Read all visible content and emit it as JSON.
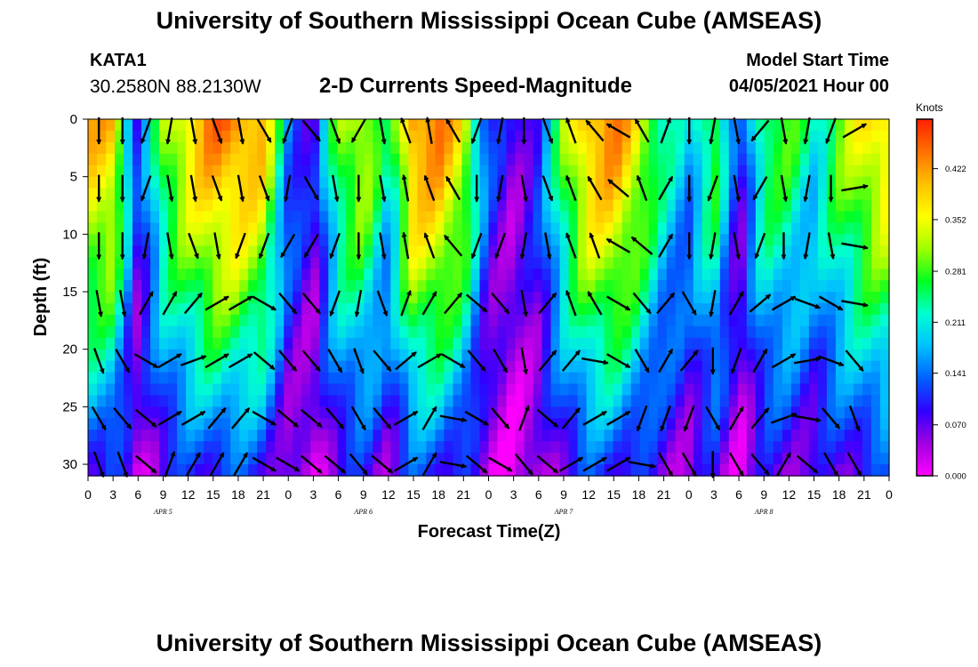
{
  "header": {
    "title": "University of Southern Mississippi Ocean Cube (AMSEAS)",
    "station": "KATA1",
    "coords": "30.2580N  88.2130W",
    "plot_title": "2-D Currents Speed-Magnitude",
    "start_label": "Model Start Time",
    "start_value": "04/05/2021 Hour 00"
  },
  "footer": {
    "title": "University of Southern Mississippi Ocean Cube (AMSEAS)"
  },
  "colors": {
    "colormap": [
      "#ff00ff",
      "#a000e0",
      "#3000ff",
      "#0060ff",
      "#00c0ff",
      "#00ffd0",
      "#00ff20",
      "#a0ff00",
      "#ffff00",
      "#ffc000",
      "#ff7000",
      "#ff2000"
    ]
  },
  "chart_data": {
    "type": "heatmap",
    "title": "2-D Currents Speed-Magnitude",
    "xlabel": "Forecast Time(Z)",
    "ylabel": "Depth (ft)",
    "x_hours_range": [
      0,
      96
    ],
    "y_range": [
      0,
      31
    ],
    "y_inverted": true,
    "x_tick_labels": [
      "0",
      "3",
      "6",
      "9",
      "12",
      "15",
      "18",
      "21",
      "0",
      "3",
      "6",
      "9",
      "12",
      "15",
      "18",
      "21",
      "0",
      "3",
      "6",
      "9",
      "12",
      "15",
      "18",
      "21",
      "0",
      "3",
      "6",
      "9",
      "12",
      "15",
      "18",
      "21",
      "0"
    ],
    "y_tick_values": [
      0,
      5,
      10,
      15,
      20,
      25,
      30
    ],
    "y_tick_labels": [
      "0",
      "5",
      "10",
      "15",
      "20",
      "25",
      "30"
    ],
    "date_labels": [
      {
        "hour": 9,
        "label": "APR 5"
      },
      {
        "hour": 33,
        "label": "APR 6"
      },
      {
        "hour": 57,
        "label": "APR 7"
      },
      {
        "hour": 81,
        "label": "APR 8"
      }
    ],
    "colorbar": {
      "unit": "Knots",
      "min": 0.0,
      "max": 0.49,
      "tick_values": [
        0.0,
        0.07,
        0.141,
        0.211,
        0.281,
        0.352,
        0.422
      ],
      "tick_labels": [
        "0.000",
        "0.070",
        "0.141",
        "0.211",
        "0.281",
        "0.352",
        "0.422"
      ]
    },
    "speed_profile_knots": [
      0.4,
      0.4,
      0.1,
      0.3,
      0.38,
      0.44,
      0.44,
      0.4,
      0.16,
      0.08,
      0.3,
      0.35,
      0.22,
      0.44,
      0.44,
      0.36,
      0.12,
      0.06,
      0.12,
      0.3,
      0.42,
      0.44,
      0.36,
      0.24,
      0.18,
      0.3,
      0.08,
      0.28,
      0.28,
      0.22,
      0.3,
      0.36,
      0.4
    ],
    "vector_rows_ft": [
      1,
      6,
      11,
      16,
      21,
      26,
      30
    ],
    "vector_directions_deg": [
      [
        180,
        180,
        200,
        190,
        170,
        160,
        170,
        150,
        200,
        140,
        160,
        210,
        170,
        340,
        350,
        330,
        200,
        190,
        180,
        160,
        340,
        320,
        300,
        330,
        20,
        180,
        190,
        170,
        220,
        170,
        190,
        200,
        60
      ],
      [
        180,
        180,
        200,
        170,
        170,
        160,
        170,
        160,
        190,
        150,
        170,
        180,
        170,
        350,
        340,
        330,
        180,
        190,
        170,
        160,
        340,
        330,
        310,
        340,
        30,
        180,
        200,
        170,
        210,
        170,
        190,
        180,
        80
      ],
      [
        180,
        180,
        190,
        170,
        160,
        170,
        200,
        200,
        210,
        210,
        200,
        180,
        170,
        350,
        340,
        320,
        200,
        200,
        190,
        170,
        340,
        340,
        300,
        310,
        30,
        180,
        190,
        170,
        200,
        180,
        190,
        170,
        100
      ],
      [
        170,
        170,
        30,
        30,
        40,
        60,
        60,
        120,
        140,
        140,
        200,
        190,
        160,
        20,
        30,
        40,
        130,
        140,
        170,
        40,
        340,
        330,
        120,
        140,
        40,
        150,
        190,
        30,
        50,
        60,
        110,
        120,
        100
      ],
      [
        160,
        150,
        120,
        60,
        70,
        60,
        60,
        130,
        140,
        140,
        150,
        160,
        140,
        50,
        60,
        120,
        140,
        150,
        170,
        40,
        40,
        100,
        120,
        150,
        30,
        40,
        180,
        200,
        30,
        60,
        80,
        110,
        140
      ],
      [
        150,
        140,
        130,
        60,
        60,
        40,
        40,
        120,
        130,
        130,
        140,
        150,
        140,
        60,
        30,
        100,
        120,
        140,
        20,
        130,
        40,
        60,
        60,
        200,
        200,
        200,
        150,
        30,
        40,
        70,
        100,
        140,
        160
      ],
      [
        160,
        160,
        130,
        20,
        30,
        30,
        30,
        120,
        120,
        130,
        130,
        140,
        130,
        60,
        30,
        100,
        130,
        120,
        140,
        130,
        60,
        60,
        60,
        100,
        150,
        150,
        180,
        150,
        140,
        30,
        130,
        150,
        150
      ]
    ]
  }
}
